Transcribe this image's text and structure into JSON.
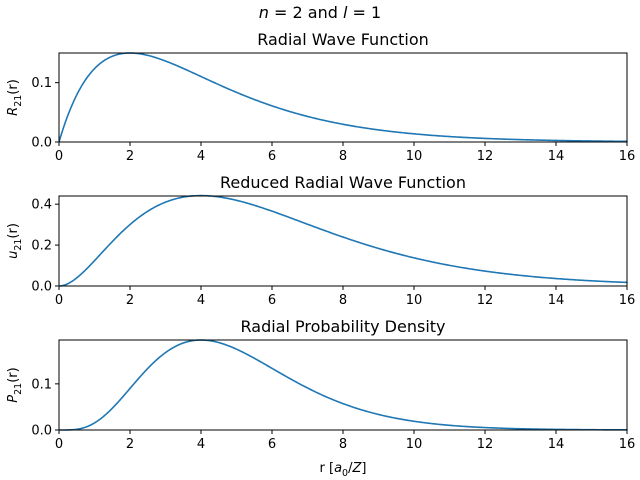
{
  "figure": {
    "suptitle_parts": [
      "n",
      " = 2 and ",
      "l",
      " = 1"
    ],
    "xlabel_parts": [
      "r [",
      "a",
      "0",
      "/",
      "Z",
      "]"
    ],
    "line_color": "#1f77b4"
  },
  "chart_data": [
    {
      "type": "line",
      "title": "Radial Wave Function",
      "ylabel_parts": [
        "R",
        "21",
        "(r)"
      ],
      "function": "R21",
      "xlim": [
        0,
        16
      ],
      "ylim": [
        0,
        0.15
      ],
      "xticks": [
        0,
        2,
        4,
        6,
        8,
        10,
        12,
        14,
        16
      ],
      "xtick_labels": [
        "0",
        "2",
        "4",
        "6",
        "8",
        "10",
        "12",
        "14",
        "16"
      ],
      "yticks": [
        0.0,
        0.1
      ],
      "ytick_labels": [
        "0.0",
        "0.1"
      ],
      "x": [
        0,
        1,
        2,
        3,
        4,
        5,
        6,
        7,
        8,
        9,
        10,
        11,
        12,
        13,
        14,
        15,
        16
      ],
      "y": [
        0.0,
        0.124,
        0.15,
        0.137,
        0.111,
        0.084,
        0.061,
        0.042,
        0.028,
        0.019,
        0.012,
        0.008,
        0.005,
        0.003,
        0.002,
        0.001,
        0.001
      ],
      "grid": false,
      "legend": "none"
    },
    {
      "type": "line",
      "title": "Reduced Radial Wave Function",
      "ylabel_parts": [
        "u",
        "21",
        "(r)"
      ],
      "function": "u21",
      "xlim": [
        0,
        16
      ],
      "ylim": [
        0,
        0.44
      ],
      "xticks": [
        0,
        2,
        4,
        6,
        8,
        10,
        12,
        14,
        16
      ],
      "xtick_labels": [
        "0",
        "2",
        "4",
        "6",
        "8",
        "10",
        "12",
        "14",
        "16"
      ],
      "yticks": [
        0.0,
        0.2,
        0.4
      ],
      "ytick_labels": [
        "0.0",
        "0.2",
        "0.4"
      ],
      "x": [
        0,
        1,
        2,
        3,
        4,
        5,
        6,
        7,
        8,
        9,
        10,
        11,
        12,
        13,
        14,
        15,
        16
      ],
      "y": [
        0.0,
        0.124,
        0.301,
        0.41,
        0.442,
        0.418,
        0.366,
        0.3,
        0.236,
        0.178,
        0.131,
        0.093,
        0.065,
        0.044,
        0.03,
        0.02,
        0.013
      ],
      "grid": false,
      "legend": "none"
    },
    {
      "type": "line",
      "title": "Radial Probability Density",
      "ylabel_parts": [
        "P",
        "21",
        "(r)"
      ],
      "function": "P21",
      "xlim": [
        0,
        16
      ],
      "ylim": [
        0,
        0.195
      ],
      "xticks": [
        0,
        2,
        4,
        6,
        8,
        10,
        12,
        14,
        16
      ],
      "xtick_labels": [
        "0",
        "2",
        "4",
        "6",
        "8",
        "10",
        "12",
        "14",
        "16"
      ],
      "yticks": [
        0.0,
        0.1
      ],
      "ytick_labels": [
        "0.0",
        "0.1"
      ],
      "x": [
        0,
        1,
        2,
        3,
        4,
        5,
        6,
        7,
        8,
        9,
        10,
        11,
        12,
        13,
        14,
        15,
        16
      ],
      "y": [
        0.0,
        0.015,
        0.09,
        0.168,
        0.195,
        0.175,
        0.134,
        0.09,
        0.056,
        0.032,
        0.017,
        0.009,
        0.004,
        0.002,
        0.001,
        0.0004,
        0.0002
      ],
      "grid": false,
      "legend": "none"
    }
  ]
}
